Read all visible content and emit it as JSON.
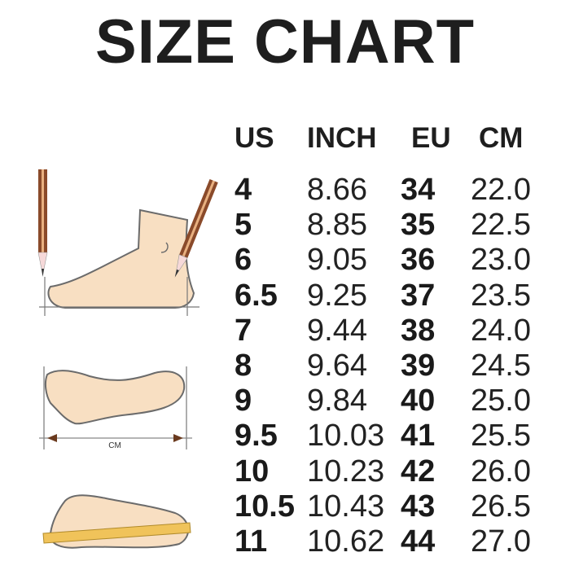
{
  "title": "SIZE CHART",
  "headers": [
    "US",
    "INCH",
    "EU",
    "CM"
  ],
  "rows": [
    [
      "4",
      "8.66",
      "34",
      "22.0"
    ],
    [
      "5",
      "8.85",
      "35",
      "22.5"
    ],
    [
      "6",
      "9.05",
      "36",
      "23.0"
    ],
    [
      "6.5",
      "9.25",
      "37",
      "23.5"
    ],
    [
      "7",
      "9.44",
      "38",
      "24.0"
    ],
    [
      "8",
      "9.64",
      "39",
      "24.5"
    ],
    [
      "9",
      "9.84",
      "40",
      "25.0"
    ],
    [
      "9.5",
      "10.03",
      "41",
      "25.5"
    ],
    [
      "10",
      "10.23",
      "42",
      "26.0"
    ],
    [
      "10.5",
      "10.43",
      "43",
      "26.5"
    ],
    [
      "11",
      "10.62",
      "44",
      "27.0"
    ]
  ],
  "illustration": {
    "measure_label": "CM"
  },
  "colors": {
    "skin": "#f8dfc2",
    "outline": "#6b6b6b",
    "pencil": "#8a4a2a",
    "ruler": "#f0c35a"
  }
}
